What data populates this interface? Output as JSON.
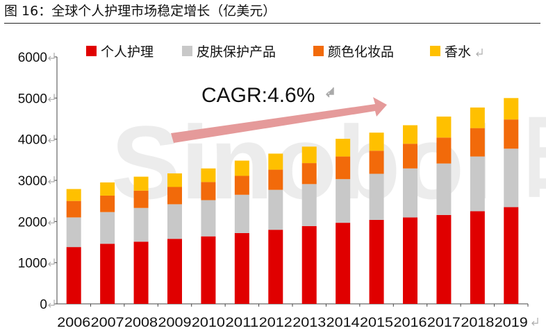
{
  "figure_title": "图 16：全球个人护理市场稳定增长（亿美元）",
  "annotation": "CAGR:4.6%",
  "watermark": "Sinobol 昕铸智能 .COM",
  "colors": {
    "个人护理": "#e00000",
    "皮肤保护产品": "#c8c8c8",
    "颜色化妆品": "#f26a0a",
    "香水": "#ffc000",
    "arrow": "#e59a9a"
  },
  "chart_data": {
    "type": "bar",
    "stacked": true,
    "categories": [
      "2006",
      "2007",
      "2008",
      "2009",
      "2010",
      "2011",
      "2012",
      "2013",
      "2014",
      "2015",
      "2016",
      "2017",
      "2018",
      "2019"
    ],
    "series": [
      {
        "name": "个人护理",
        "values": [
          1380,
          1460,
          1510,
          1580,
          1640,
          1720,
          1800,
          1890,
          1970,
          2040,
          2100,
          2160,
          2250,
          2350
        ]
      },
      {
        "name": "皮肤保护产品",
        "values": [
          720,
          770,
          820,
          840,
          880,
          930,
          970,
          1020,
          1060,
          1120,
          1190,
          1250,
          1330,
          1420
        ]
      },
      {
        "name": "颜色化妆品",
        "values": [
          400,
          400,
          420,
          420,
          440,
          460,
          490,
          510,
          550,
          560,
          600,
          630,
          690,
          710
        ]
      },
      {
        "name": "香水",
        "values": [
          290,
          320,
          340,
          330,
          330,
          370,
          390,
          400,
          430,
          440,
          450,
          510,
          500,
          520
        ]
      }
    ],
    "ylim": [
      0,
      6000
    ],
    "yticks": [
      0,
      1000,
      2000,
      3000,
      4000,
      5000,
      6000
    ],
    "legend": "top",
    "grid": false
  }
}
